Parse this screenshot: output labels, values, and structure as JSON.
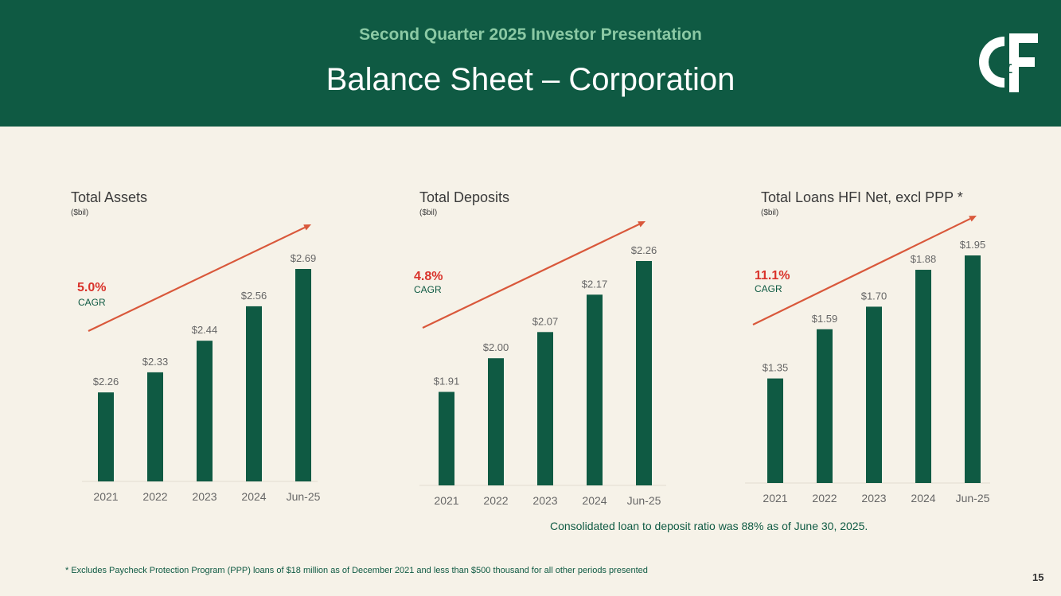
{
  "header": {
    "subtitle": "Second Quarter 2025 Investor Presentation",
    "title": "Balance Sheet – Corporation"
  },
  "colors": {
    "header_bg": "#0f5a43",
    "bar": "#0f5a43",
    "cagr": "#d9332b",
    "trend": "#d9583b",
    "accent_text": "#8bc9a4"
  },
  "chart_data": [
    {
      "type": "bar",
      "title": "Total Assets",
      "unit": "($bil)",
      "categories": [
        "2021",
        "2022",
        "2023",
        "2024",
        "Jun-25"
      ],
      "values": [
        2.26,
        2.33,
        2.44,
        2.56,
        2.69
      ],
      "value_labels": [
        "$2.26",
        "$2.33",
        "$2.44",
        "$2.56",
        "$2.69"
      ],
      "cagr": "5.0%",
      "cagr_label": "CAGR"
    },
    {
      "type": "bar",
      "title": "Total Deposits",
      "unit": "($bil)",
      "categories": [
        "2021",
        "2022",
        "2023",
        "2024",
        "Jun-25"
      ],
      "values": [
        1.91,
        2.0,
        2.07,
        2.17,
        2.26
      ],
      "value_labels": [
        "$1.91",
        "$2.00",
        "$2.07",
        "$2.17",
        "$2.26"
      ],
      "cagr": "4.8%",
      "cagr_label": "CAGR"
    },
    {
      "type": "bar",
      "title": "Total Loans HFI Net, excl PPP *",
      "unit": "($bil)",
      "categories": [
        "2021",
        "2022",
        "2023",
        "2024",
        "Jun-25"
      ],
      "values": [
        1.35,
        1.59,
        1.7,
        1.88,
        1.95
      ],
      "value_labels": [
        "$1.35",
        "$1.59",
        "$1.70",
        "$1.88",
        "$1.95"
      ],
      "cagr": "11.1%",
      "cagr_label": "CAGR"
    }
  ],
  "note": "Consolidated loan to deposit ratio was 88% as of June 30, 2025.",
  "footnote": "* Excludes Paycheck Protection Program (PPP) loans of $18 million as of December 2021 and less than $500 thousand for all other periods presented",
  "page_number": "15"
}
